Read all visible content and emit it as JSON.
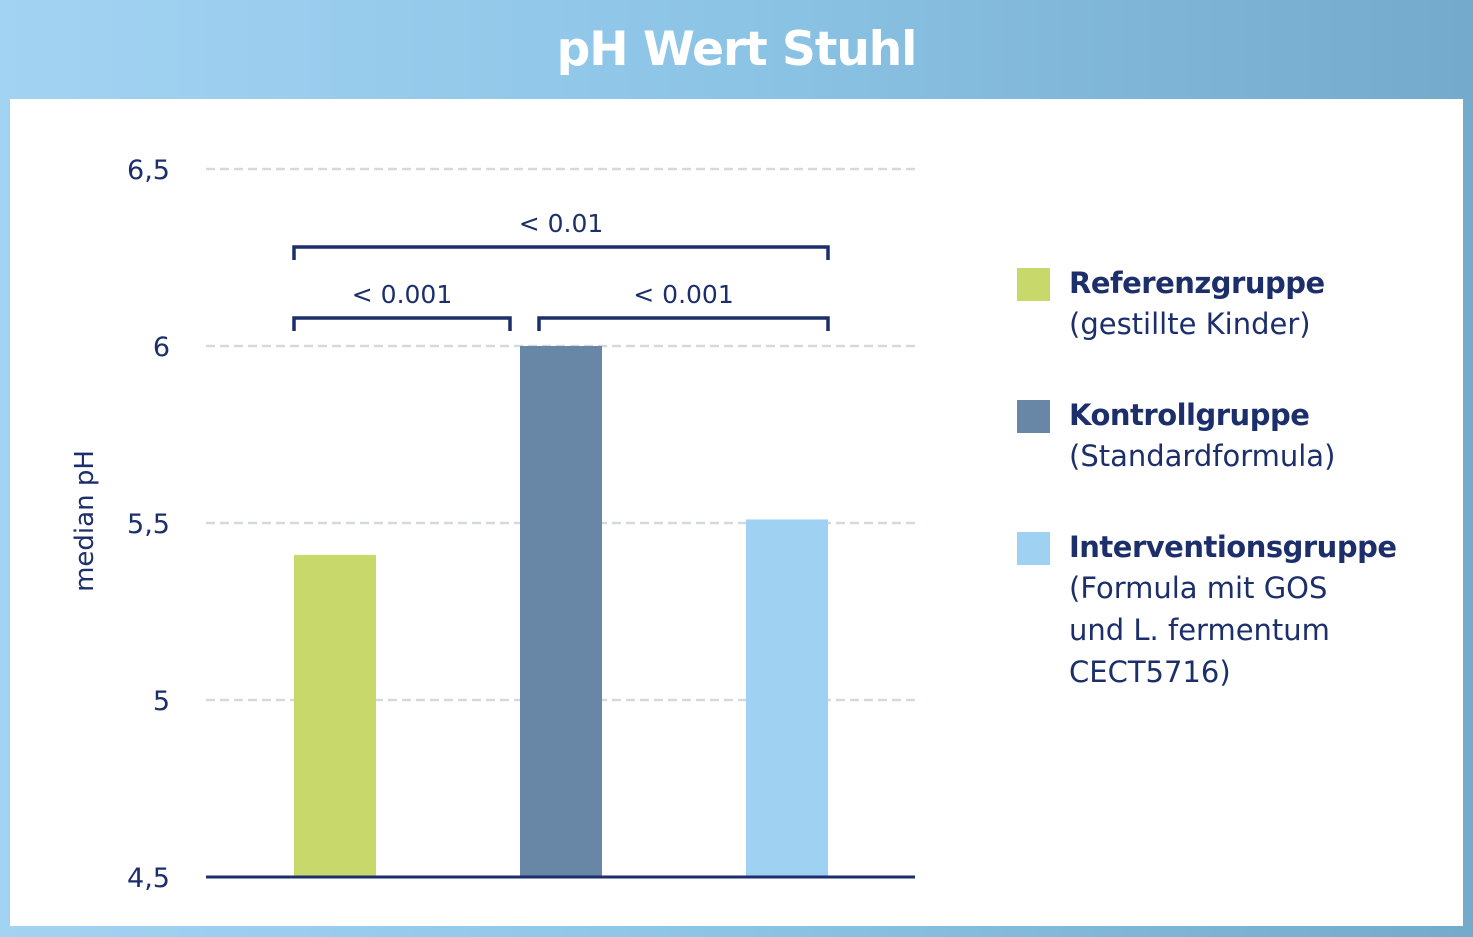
{
  "title": "pH Wert Stuhl",
  "chart_data": {
    "type": "bar",
    "title": "pH Wert Stuhl",
    "ylabel": "median pH",
    "xlabel": "",
    "ylim": [
      4.5,
      6.5
    ],
    "yticks": [
      {
        "value": 4.5,
        "label": "4,5"
      },
      {
        "value": 5,
        "label": "5"
      },
      {
        "value": 5.5,
        "label": "5,5"
      },
      {
        "value": 6,
        "label": "6"
      },
      {
        "value": 6.5,
        "label": "6,5"
      }
    ],
    "grid": true,
    "legend_position": "right",
    "categories": [
      "Referenzgruppe",
      "Kontrollgruppe",
      "Interventionsgruppe"
    ],
    "values": [
      5.41,
      6.0,
      5.51
    ],
    "colors": [
      "#c8d86a",
      "#6886a6",
      "#9fd1f2"
    ],
    "comparisons": [
      {
        "from": 0,
        "to": 1,
        "label": "< 0.001",
        "level": 0
      },
      {
        "from": 1,
        "to": 2,
        "label": "< 0.001",
        "level": 0
      },
      {
        "from": 0,
        "to": 2,
        "label": "< 0.01",
        "level": 1
      }
    ]
  },
  "legend": [
    {
      "name": "Referenzgruppe",
      "desc": "(gestillte Kinder)",
      "color": "#c8d86a"
    },
    {
      "name": "Kontrollgruppe",
      "desc": "(Standardformula)",
      "color": "#6886a6"
    },
    {
      "name": "Interventionsgruppe",
      "desc": "(Formula mit GOS\nund L. fermentum\nCECT5716)",
      "color": "#9fd1f2"
    }
  ]
}
